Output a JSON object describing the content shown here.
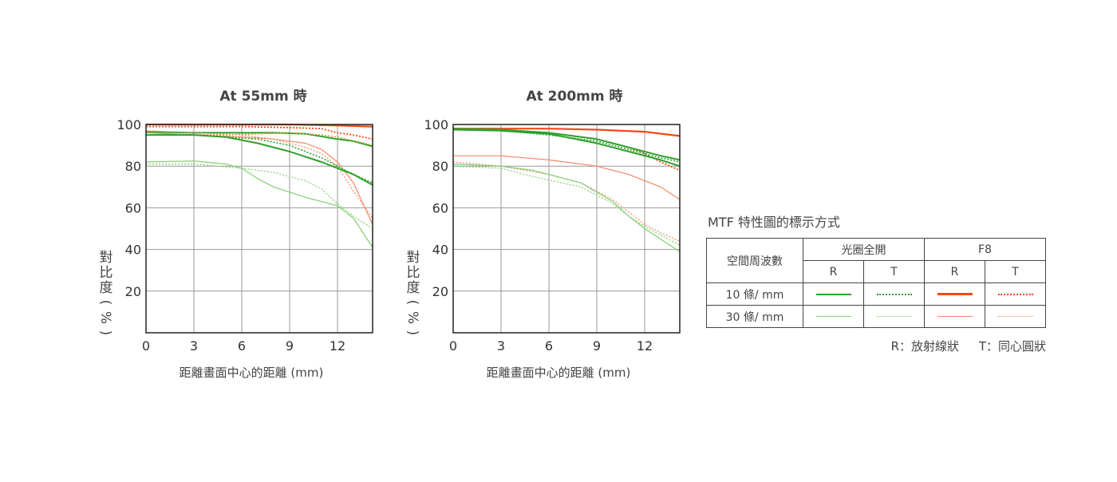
{
  "chart_data": [
    {
      "type": "line",
      "title": "At 55mm 時",
      "xlabel": "距離畫面中心的距離 (mm)",
      "ylabel": "對比度(%)",
      "xlim": [
        0,
        14.2
      ],
      "ylim": [
        0,
        100
      ],
      "x_ticks": [
        0,
        3,
        6,
        9,
        12
      ],
      "y_ticks": [
        20,
        40,
        60,
        80,
        100
      ],
      "grid": true,
      "series": [
        {
          "key": "f8_10_r",
          "points": [
            [
              0,
              100
            ],
            [
              3,
              100
            ],
            [
              6,
              100
            ],
            [
              9,
              100
            ],
            [
              12,
              99.5
            ],
            [
              14.2,
              99
            ]
          ]
        },
        {
          "key": "f8_10_t",
          "points": [
            [
              0,
              99
            ],
            [
              3,
              99
            ],
            [
              6,
              99
            ],
            [
              9,
              98.5
            ],
            [
              11,
              98
            ],
            [
              12,
              96
            ],
            [
              13,
              95
            ],
            [
              14.2,
              93
            ]
          ]
        },
        {
          "key": "open_10_r",
          "points": [
            [
              0,
              96.5
            ],
            [
              3,
              96
            ],
            [
              6,
              96
            ],
            [
              8,
              96
            ],
            [
              10,
              95.5
            ],
            [
              12,
              93
            ],
            [
              13,
              92
            ],
            [
              14.2,
              89.5
            ]
          ]
        },
        {
          "key": "open_10_t",
          "points": [
            [
              0,
              95
            ],
            [
              3,
              95
            ],
            [
              5,
              95
            ],
            [
              7,
              95.5
            ],
            [
              9,
              96
            ],
            [
              11,
              95
            ],
            [
              12,
              94
            ],
            [
              14.2,
              90
            ]
          ]
        },
        {
          "key": "f8_30_r",
          "points": [
            [
              0,
              96
            ],
            [
              3,
              95
            ],
            [
              6,
              94
            ],
            [
              8,
              93
            ],
            [
              10,
              91
            ],
            [
              11,
              88
            ],
            [
              12,
              82
            ],
            [
              13,
              72
            ],
            [
              14.2,
              52
            ]
          ]
        },
        {
          "key": "f8_30_t",
          "points": [
            [
              0,
              97
            ],
            [
              3,
              96
            ],
            [
              6,
              95
            ],
            [
              8,
              93
            ],
            [
              10,
              89
            ],
            [
              11,
              86
            ],
            [
              12,
              80
            ],
            [
              13,
              68
            ],
            [
              14.2,
              55
            ]
          ]
        },
        {
          "key": "open_10_r_g",
          "points": [
            [
              0,
              95
            ],
            [
              3,
              95
            ],
            [
              5,
              94
            ],
            [
              7,
              91
            ],
            [
              9,
              87
            ],
            [
              11,
              82
            ],
            [
              12,
              79
            ],
            [
              13,
              76
            ],
            [
              14.2,
              71
            ]
          ]
        },
        {
          "key": "open_10_t_g",
          "points": [
            [
              0,
              95
            ],
            [
              3,
              95
            ],
            [
              5,
              94
            ],
            [
              7,
              93
            ],
            [
              9,
              90
            ],
            [
              11,
              84
            ],
            [
              12,
              80
            ],
            [
              13,
              76
            ],
            [
              14.2,
              72
            ]
          ]
        },
        {
          "key": "open_30_r",
          "points": [
            [
              0,
              82
            ],
            [
              3,
              82.5
            ],
            [
              5,
              81
            ],
            [
              6,
              79
            ],
            [
              7,
              74
            ],
            [
              8,
              70
            ],
            [
              10,
              65
            ],
            [
              12,
              61
            ],
            [
              13,
              55
            ],
            [
              14.2,
              41
            ]
          ]
        },
        {
          "key": "open_30_t",
          "points": [
            [
              0,
              81
            ],
            [
              3,
              81
            ],
            [
              6,
              79
            ],
            [
              8,
              77
            ],
            [
              10,
              73
            ],
            [
              11,
              69
            ],
            [
              12,
              62
            ],
            [
              13,
              56
            ],
            [
              14.2,
              50
            ]
          ]
        }
      ]
    },
    {
      "type": "line",
      "title": "At 200mm 時",
      "xlabel": "距離畫面中心的距離 (mm)",
      "ylabel": "對比度(%)",
      "xlim": [
        0,
        14.2
      ],
      "ylim": [
        0,
        100
      ],
      "x_ticks": [
        0,
        3,
        6,
        9,
        12
      ],
      "y_ticks": [
        20,
        40,
        60,
        80,
        100
      ],
      "grid": true,
      "series": [
        {
          "key": "f8_10_r",
          "points": [
            [
              0,
              98
            ],
            [
              3,
              98
            ],
            [
              6,
              98
            ],
            [
              9,
              97.5
            ],
            [
              12,
              96.5
            ],
            [
              14.2,
              94.5
            ]
          ]
        },
        {
          "key": "f8_10_t",
          "points": [
            [
              0,
              98
            ],
            [
              3,
              97.5
            ],
            [
              6,
              96
            ],
            [
              9,
              93
            ],
            [
              11,
              89
            ],
            [
              12,
              86
            ],
            [
              13,
              82
            ],
            [
              14.2,
              78
            ]
          ]
        },
        {
          "key": "open_10_r",
          "points": [
            [
              0,
              97.5
            ],
            [
              3,
              97
            ],
            [
              6,
              95.5
            ],
            [
              9,
              91
            ],
            [
              11,
              87
            ],
            [
              13,
              83
            ],
            [
              14.2,
              80
            ]
          ]
        },
        {
          "key": "open_10_r_g",
          "points": [
            [
              0,
              98
            ],
            [
              3,
              97.5
            ],
            [
              6,
              96
            ],
            [
              9,
              93
            ],
            [
              11,
              89
            ],
            [
              13,
              85
            ],
            [
              14.2,
              83
            ]
          ]
        },
        {
          "key": "open_10_t_g",
          "points": [
            [
              0,
              98
            ],
            [
              3,
              97
            ],
            [
              6,
              95
            ],
            [
              9,
              92
            ],
            [
              11,
              88
            ],
            [
              13,
              84
            ],
            [
              14.2,
              82
            ]
          ]
        },
        {
          "key": "f8_30_r",
          "points": [
            [
              0,
              85
            ],
            [
              3,
              85
            ],
            [
              6,
              83
            ],
            [
              9,
              80
            ],
            [
              11,
              76
            ],
            [
              13,
              70
            ],
            [
              14.2,
              64
            ]
          ]
        },
        {
          "key": "f8_30_t",
          "points": [
            [
              0,
              82
            ],
            [
              3,
              80
            ],
            [
              6,
              76
            ],
            [
              8,
              72
            ],
            [
              10,
              64
            ],
            [
              11,
              58
            ],
            [
              12,
              52
            ],
            [
              13,
              48
            ],
            [
              14.2,
              44
            ]
          ]
        },
        {
          "key": "open_30_r",
          "points": [
            [
              0,
              81
            ],
            [
              3,
              80
            ],
            [
              5,
              78
            ],
            [
              8,
              72
            ],
            [
              10,
              63
            ],
            [
              11,
              56
            ],
            [
              12,
              50
            ],
            [
              13,
              45
            ],
            [
              14.2,
              39
            ]
          ]
        },
        {
          "key": "open_30_t",
          "points": [
            [
              0,
              80
            ],
            [
              3,
              79
            ],
            [
              5,
              75
            ],
            [
              8,
              70
            ],
            [
              10,
              62
            ],
            [
              11,
              56
            ],
            [
              12,
              51
            ],
            [
              13,
              47
            ],
            [
              14.2,
              42
            ]
          ]
        }
      ]
    }
  ],
  "line_colors": {
    "open": "#2ca02c",
    "f8": "#f04a19"
  },
  "legend": {
    "title": "MTF 特性圖的標示方式",
    "header_freq": "空間周波數",
    "header_open": "光圈全開",
    "header_f8": "F8",
    "r": "R",
    "t": "T",
    "row_10": "10 條/ mm",
    "row_30": "30 條/ mm",
    "note_r": "R：放射線狀",
    "note_t": "T：同心圓狀"
  }
}
